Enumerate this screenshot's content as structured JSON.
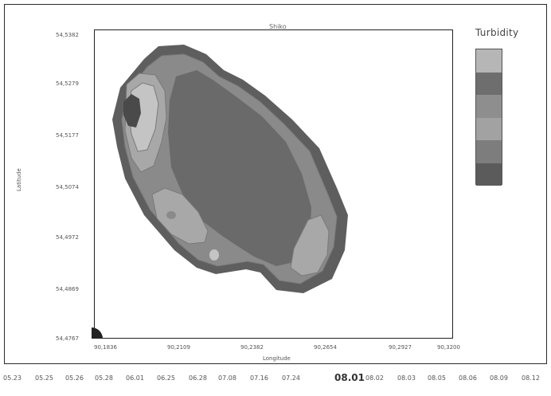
{
  "plot": {
    "title": "Shiko",
    "xlabel": "Longitude",
    "ylabel": "Latitude",
    "yticks": [
      "54,5382",
      "54,5279",
      "54,5177",
      "54,5074",
      "54,4972",
      "54,4869",
      "54,4767"
    ],
    "xticks": [
      "90,1836",
      "90,2109",
      "90,2382",
      "90,2654",
      "90,2927",
      "90,3200"
    ]
  },
  "legend": {
    "title": "Turbidity",
    "swatches": [
      "#b6b6b6",
      "#6e6e6e",
      "#8e8e8e",
      "#a2a2a2",
      "#7d7d7d",
      "#5b5b5b"
    ]
  },
  "colors": {
    "outer_ring": "#5e5e5e",
    "level_2": "#8a8a8a",
    "level_3": "#a8a8a8",
    "level_4": "#c4c4c4",
    "core": "#6a6a6a",
    "hot_spot": "#4a4a4a"
  },
  "timeline": {
    "dates": [
      "05.23",
      "05.25",
      "05.26",
      "05.28",
      "06.01",
      "06.25",
      "06.28",
      "07.08",
      "07.16",
      "07.24",
      "08.01",
      "08.02",
      "08.03",
      "08.05",
      "08.06",
      "08.09",
      "08.12"
    ],
    "selected": "08.01"
  }
}
